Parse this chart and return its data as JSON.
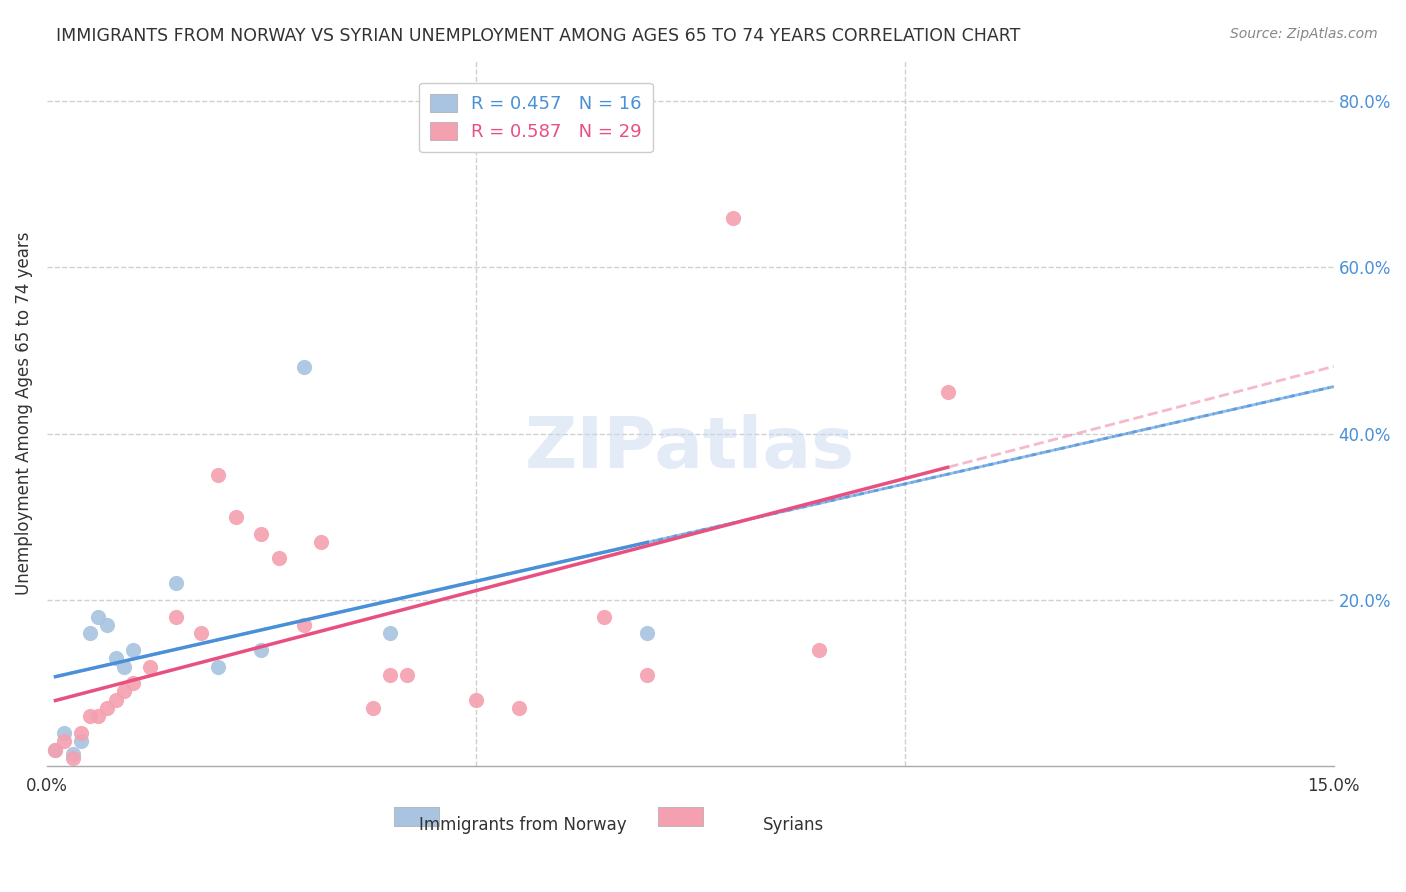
{
  "title": "IMMIGRANTS FROM NORWAY VS SYRIAN UNEMPLOYMENT AMONG AGES 65 TO 74 YEARS CORRELATION CHART",
  "source": "Source: ZipAtlas.com",
  "xlabel_bottom": "",
  "ylabel": "Unemployment Among Ages 65 to 74 years",
  "x_label_bottom": "",
  "xlim": [
    0.0,
    0.15
  ],
  "ylim": [
    0.0,
    0.85
  ],
  "x_ticks": [
    0.0,
    0.05,
    0.1,
    0.15
  ],
  "x_tick_labels": [
    "0.0%",
    "",
    "",
    "15.0%"
  ],
  "y_ticks_right": [
    0.0,
    0.2,
    0.4,
    0.6,
    0.8
  ],
  "y_tick_labels_right": [
    "",
    "20.0%",
    "40.0%",
    "60.0%",
    "80.0%"
  ],
  "norway_x": [
    0.001,
    0.002,
    0.003,
    0.004,
    0.005,
    0.006,
    0.007,
    0.008,
    0.009,
    0.01,
    0.015,
    0.02,
    0.025,
    0.03,
    0.04,
    0.07
  ],
  "norway_y": [
    0.02,
    0.04,
    0.015,
    0.03,
    0.16,
    0.18,
    0.17,
    0.13,
    0.12,
    0.14,
    0.22,
    0.12,
    0.14,
    0.48,
    0.16,
    0.16
  ],
  "syrian_x": [
    0.001,
    0.002,
    0.003,
    0.004,
    0.005,
    0.006,
    0.007,
    0.008,
    0.009,
    0.01,
    0.012,
    0.015,
    0.018,
    0.02,
    0.022,
    0.025,
    0.027,
    0.03,
    0.032,
    0.038,
    0.04,
    0.042,
    0.05,
    0.055,
    0.065,
    0.07,
    0.08,
    0.09,
    0.105
  ],
  "syrian_y": [
    0.02,
    0.03,
    0.01,
    0.04,
    0.06,
    0.06,
    0.07,
    0.08,
    0.09,
    0.1,
    0.12,
    0.18,
    0.16,
    0.35,
    0.3,
    0.28,
    0.25,
    0.17,
    0.27,
    0.07,
    0.11,
    0.11,
    0.08,
    0.07,
    0.18,
    0.11,
    0.66,
    0.14,
    0.45
  ],
  "norway_color": "#a8c4e0",
  "syrian_color": "#f4a0b0",
  "norway_line_color": "#4a90d9",
  "syrian_line_color": "#e85080",
  "norway_R": 0.457,
  "norway_N": 16,
  "syrian_R": 0.587,
  "syrian_N": 29,
  "watermark": "ZIPatlas",
  "background_color": "#ffffff",
  "grid_color": "#d0d0d0"
}
